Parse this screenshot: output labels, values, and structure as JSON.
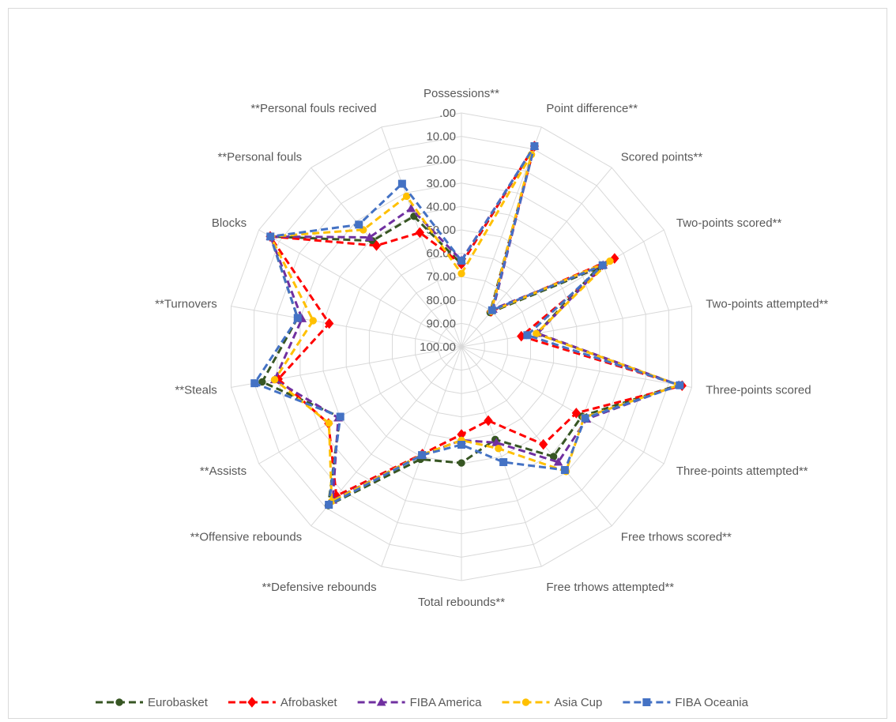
{
  "chart_data": {
    "type": "radar",
    "axis": {
      "range": [
        0,
        100
      ],
      "reversed": true,
      "ticks": [
        ".00",
        "10.00",
        "20.00",
        "30.00",
        "40.00",
        "50.00",
        "60.00",
        "70.00",
        "80.00",
        "90.00",
        "100.00"
      ]
    },
    "grid": true,
    "legend_position": "bottom",
    "categories": [
      "Possessions**",
      "Point difference**",
      "Scored points**",
      "Two-points scored**",
      "Two-points attempted**",
      "Three-points scored",
      "Three-points attempted**",
      "Free trhows scored**",
      "Free trhows attempted**",
      "Total rebounds**",
      "**Defensive rebounds",
      "**Offensive rebounds",
      "**Assists",
      "**Steals",
      "**Turnovers",
      "Blocks",
      "**Personal fouls",
      "**Personal fouls recived"
    ],
    "series": [
      {
        "name": "Eurobasket",
        "color": "#375623",
        "dash": "dashed",
        "marker": "circle",
        "values": [
          64.6,
          8.7,
          80.9,
          32.6,
          67.2,
          5.8,
          40.6,
          38.7,
          57.8,
          50.3,
          48.8,
          11.4,
          40.0,
          13.5,
          28.9,
          5.7,
          40.8,
          40.6
        ]
      },
      {
        "name": "Afrobasket",
        "color": "#ff0000",
        "dash": "dashed",
        "marker": "diamond",
        "values": [
          64.6,
          8.7,
          80.2,
          24.4,
          74.0,
          4.2,
          43.3,
          45.5,
          66.4,
          62.5,
          51.2,
          16.8,
          34.4,
          20.5,
          42.6,
          5.6,
          43.5,
          48.0
        ]
      },
      {
        "name": "FIBA America",
        "color": "#7030a0",
        "dash": "dashed",
        "marker": "triangle",
        "values": [
          63.0,
          8.7,
          79.0,
          30.1,
          66.9,
          5.6,
          38.2,
          35.6,
          56.4,
          60.0,
          50.9,
          14.4,
          39.2,
          18.9,
          30.8,
          5.7,
          38.9,
          37.1
        ]
      },
      {
        "name": "Asia Cup",
        "color": "#ffc000",
        "dash": "dashed",
        "marker": "circle",
        "values": [
          68.7,
          12.5,
          80.3,
          26.7,
          67.5,
          5.6,
          39.5,
          30.4,
          53.7,
          60.0,
          50.9,
          13.7,
          34.6,
          18.9,
          35.6,
          5.7,
          34.7,
          31.5
        ]
      },
      {
        "name": "FIBA Oceania",
        "color": "#4472c4",
        "dash": "dashed",
        "marker": "square",
        "values": [
          63.2,
          8.7,
          79.6,
          30.3,
          71.4,
          5.2,
          38.9,
          31.2,
          47.5,
          58.1,
          50.7,
          11.8,
          40.2,
          10.2,
          28.9,
          5.7,
          31.8,
          25.8
        ]
      }
    ]
  }
}
